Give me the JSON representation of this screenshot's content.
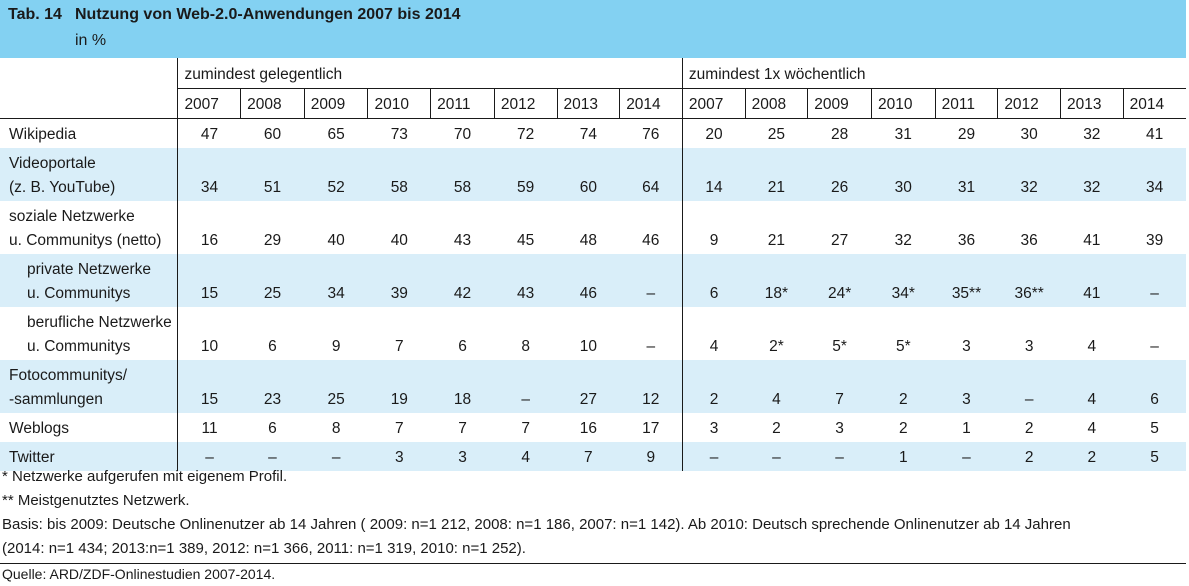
{
  "header": {
    "number": "Tab. 14",
    "title": "Nutzung von Web-2.0-Anwendungen 2007 bis 2014",
    "unit": "in %"
  },
  "table": {
    "groups": [
      "zumindest gelegentlich",
      "zumindest 1x wöchentlich"
    ],
    "years": [
      "2007",
      "2008",
      "2009",
      "2010",
      "2011",
      "2012",
      "2013",
      "2014"
    ],
    "rows": [
      {
        "label": [
          "Wikipedia"
        ],
        "indent": false,
        "shaded": false,
        "values": [
          "47",
          "60",
          "65",
          "73",
          "70",
          "72",
          "74",
          "76",
          "20",
          "25",
          "28",
          "31",
          "29",
          "30",
          "32",
          "41"
        ]
      },
      {
        "label": [
          "Videoportale",
          "(z. B. YouTube)"
        ],
        "indent": false,
        "shaded": true,
        "values": [
          "34",
          "51",
          "52",
          "58",
          "58",
          "59",
          "60",
          "64",
          "14",
          "21",
          "26",
          "30",
          "31",
          "32",
          "32",
          "34"
        ]
      },
      {
        "label": [
          "soziale Netzwerke",
          "u. Communitys (netto)"
        ],
        "indent": false,
        "shaded": false,
        "values": [
          "16",
          "29",
          "40",
          "40",
          "43",
          "45",
          "48",
          "46",
          "9",
          "21",
          "27",
          "32",
          "36",
          "36",
          "41",
          "39"
        ]
      },
      {
        "label": [
          "private Netzwerke",
          "u. Communitys"
        ],
        "indent": true,
        "shaded": true,
        "values": [
          "15",
          "25",
          "34",
          "39",
          "42",
          "43",
          "46",
          "–",
          "6",
          "18*",
          "24*",
          "34*",
          "35**",
          "36**",
          "41",
          "–"
        ]
      },
      {
        "label": [
          "berufliche Netzwerke",
          "u. Communitys"
        ],
        "indent": true,
        "shaded": false,
        "values": [
          "10",
          "6",
          "9",
          "7",
          "6",
          "8",
          "10",
          "–",
          "4",
          "2*",
          "5*",
          "5*",
          "3",
          "3",
          "4",
          "–"
        ]
      },
      {
        "label": [
          "Fotocommunitys/",
          "-sammlungen"
        ],
        "indent": false,
        "shaded": true,
        "values": [
          "15",
          "23",
          "25",
          "19",
          "18",
          "–",
          "27",
          "12",
          "2",
          "4",
          "7",
          "2",
          "3",
          "–",
          "4",
          "6"
        ]
      },
      {
        "label": [
          "Weblogs"
        ],
        "indent": false,
        "shaded": false,
        "values": [
          "11",
          "6",
          "8",
          "7",
          "7",
          "7",
          "16",
          "17",
          "3",
          "2",
          "3",
          "2",
          "1",
          "2",
          "4",
          "5"
        ]
      },
      {
        "label": [
          "Twitter"
        ],
        "indent": false,
        "shaded": true,
        "values": [
          "–",
          "–",
          "–",
          "3",
          "3",
          "4",
          "7",
          "9",
          "–",
          "–",
          "–",
          "1",
          "–",
          "2",
          "2",
          "5"
        ]
      }
    ]
  },
  "footnotes": [
    "* Netzwerke aufgerufen mit eigenem Profil.",
    "** Meistgenutztes Netzwerk."
  ],
  "basis": [
    "Basis: bis 2009: Deutsche Onlinenutzer ab 14 Jahren ( 2009: n=1 212, 2008: n=1 186, 2007: n=1 142). Ab 2010: Deutsch sprechende Onlinenutzer ab 14 Jahren",
    "(2014: n=1 434; 2013:n=1 389, 2012: n=1 366, 2011: n=1 319, 2010: n=1 252)."
  ],
  "source": "Quelle: ARD/ZDF-Onlinestudien 2007-2014.",
  "colors": {
    "title_bar": "#83d1f2",
    "shaded_row": "#d9eef9",
    "text": "#1a1a1a"
  }
}
